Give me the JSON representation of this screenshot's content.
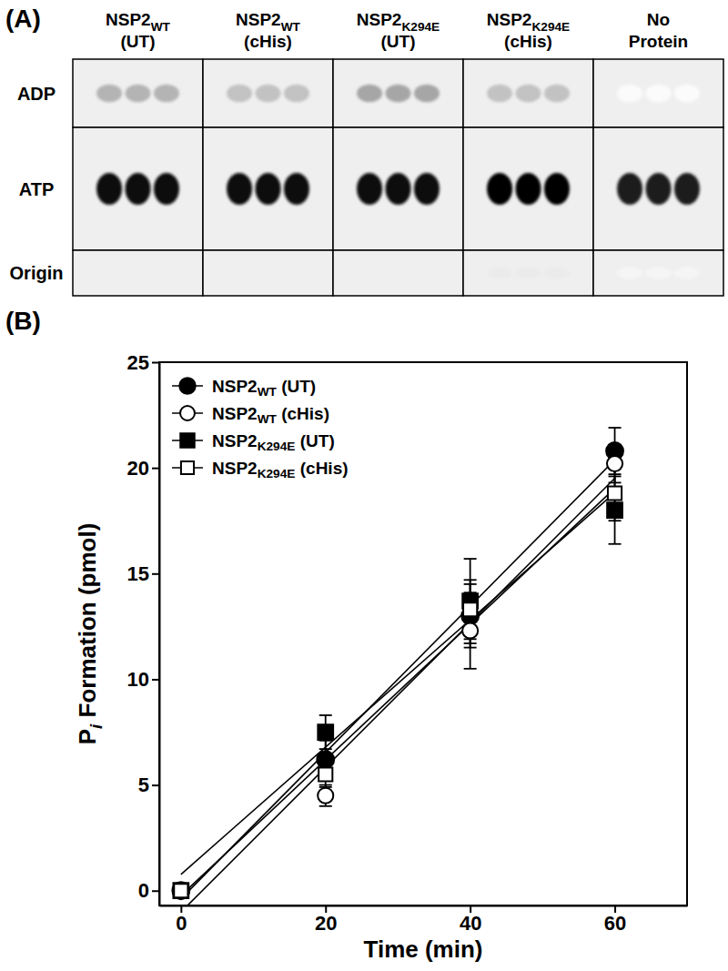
{
  "chart_data": [
    {
      "type": "gel",
      "title": "(A)",
      "categories": [
        "NSP2WT (UT)",
        "NSP2WT (cHis)",
        "NSP2K294E (UT)",
        "NSP2K294E (cHis)",
        "No Protein"
      ],
      "rows": [
        "ADP",
        "ATP",
        "Origin"
      ],
      "replicates": 3,
      "intensity": [
        [
          0.4,
          0.35,
          0.45,
          0.35,
          0.03
        ],
        [
          0.95,
          0.95,
          0.95,
          1.0,
          0.9
        ],
        [
          0.12,
          0.12,
          0.12,
          0.15,
          0.08
        ]
      ]
    },
    {
      "type": "line",
      "title": "(B)",
      "xlabel": "Time (min)",
      "ylabel": "Pi Formation (pmol)",
      "x": [
        0,
        20,
        40,
        60
      ],
      "xlim": [
        -3,
        70
      ],
      "ylim": [
        -0.7,
        25
      ],
      "xticks": [
        0,
        20,
        40,
        60
      ],
      "yticks": [
        0,
        5,
        10,
        15,
        20,
        25
      ],
      "legend": "upper left",
      "series": [
        {
          "name": "NSP2WT (UT)",
          "color": "#000000",
          "marker": "filled-circle",
          "values": [
            0,
            6.2,
            13.0,
            20.8
          ],
          "errors": [
            0,
            0.9,
            1.5,
            1.1
          ]
        },
        {
          "name": "NSP2WT (cHis)",
          "color": "#000000",
          "marker": "open-circle",
          "values": [
            0,
            4.5,
            12.3,
            20.2
          ],
          "errors": [
            0,
            0.5,
            1.8,
            0.9
          ]
        },
        {
          "name": "NSP2K294E (UT)",
          "color": "#000000",
          "marker": "filled-square",
          "values": [
            0,
            7.5,
            13.7,
            18.0
          ],
          "errors": [
            0,
            0.8,
            2.0,
            1.6
          ]
        },
        {
          "name": "NSP2K294E (cHis)",
          "color": "#000000",
          "marker": "open-square",
          "values": [
            0,
            5.5,
            13.3,
            18.8
          ],
          "errors": [
            0,
            0.6,
            1.4,
            1.3
          ]
        }
      ]
    }
  ]
}
